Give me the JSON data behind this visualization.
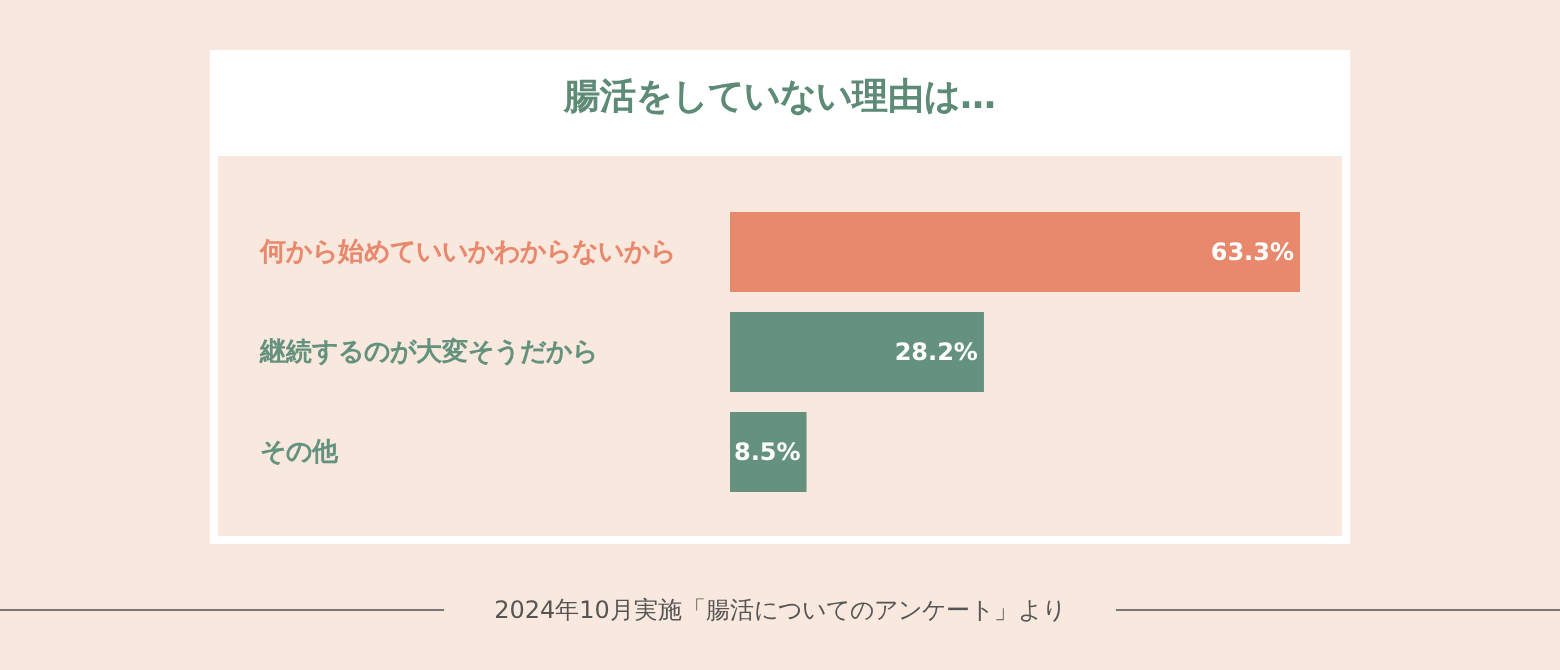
{
  "chart_data": {
    "type": "bar",
    "orientation": "horizontal",
    "title": "腸活をしていない理由は…",
    "categories": [
      "何から始めていいかわからないから",
      "継続するのが大変そうだから",
      "その他"
    ],
    "values": [
      63.3,
      28.2,
      8.5
    ],
    "colors": [
      "#e8886c",
      "#64927e",
      "#64927e"
    ],
    "value_labels": [
      "63.3%",
      "28.2%",
      "8.5%"
    ],
    "annotations": [
      "2024年10月実施「腸活についてのアンケート」より"
    ]
  }
}
